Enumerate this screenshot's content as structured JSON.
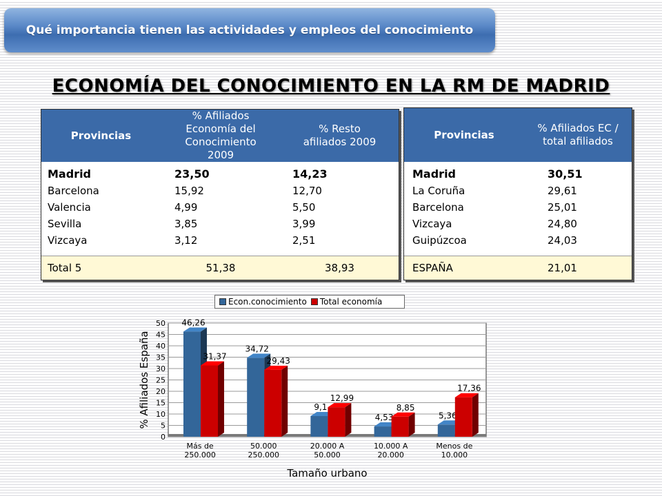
{
  "banner": {
    "title": "Qué importancia tienen las actividades y empleos del conocimiento"
  },
  "main_title": "ECONOMÍA DEL CONOCIMIENTO EN LA RM DE MADRID",
  "table_left": {
    "headers": [
      "Provincias",
      "% Afiliados Economía del Conocimiento 2009",
      "% Resto afiliados 2009"
    ],
    "rows": [
      {
        "prov": "Madrid",
        "a": "23,50",
        "b": "14,23"
      },
      {
        "prov": "Barcelona",
        "a": "15,92",
        "b": "12,70"
      },
      {
        "prov": "Valencia",
        "a": "4,99",
        "b": "5,50"
      },
      {
        "prov": "Sevilla",
        "a": "3,85",
        "b": "3,99"
      },
      {
        "prov": "Vizcaya",
        "a": "3,12",
        "b": "2,51"
      }
    ],
    "total": {
      "label": "Total 5",
      "a": "51,38",
      "b": "38,93"
    }
  },
  "table_right": {
    "headers": [
      "Provincias",
      "% Afiliados EC / total afiliados"
    ],
    "rows": [
      {
        "prov": "Madrid",
        "a": "30,51"
      },
      {
        "prov": "La Coruña",
        "a": "29,61"
      },
      {
        "prov": "Barcelona",
        "a": "25,01"
      },
      {
        "prov": "Vizcaya",
        "a": "24,80"
      },
      {
        "prov": "Guipúzcoa",
        "a": "24,03"
      }
    ],
    "total": {
      "label": "ESPAÑA",
      "a": "21,01"
    }
  },
  "chart_data": {
    "type": "bar",
    "categories": [
      "Más de 250.000",
      "50.000 250.000",
      "20.000 A 50.000",
      "10.000 A 20.000",
      "Menos de 10.000"
    ],
    "series": [
      {
        "name": "Econ.conocimiento",
        "values": [
          46.26,
          34.72,
          9.1,
          4.53,
          5.36
        ],
        "labels": [
          "46,26",
          "34,72",
          "9,1",
          "4,53",
          "5,36"
        ],
        "color": "#336699"
      },
      {
        "name": "Total economía",
        "values": [
          31.37,
          29.43,
          12.99,
          8.85,
          17.36
        ],
        "labels": [
          "31,37",
          "29,43",
          "12,99",
          "8,85",
          "17,36"
        ],
        "color": "#cc0000"
      }
    ],
    "xlabel": "Tamaño urbano",
    "ylabel": "% Afiliados España",
    "ylim": [
      0,
      50
    ],
    "yticks": [
      0,
      5,
      10,
      15,
      20,
      25,
      30,
      35,
      40,
      45,
      50
    ],
    "legend": "top",
    "grid": true
  }
}
